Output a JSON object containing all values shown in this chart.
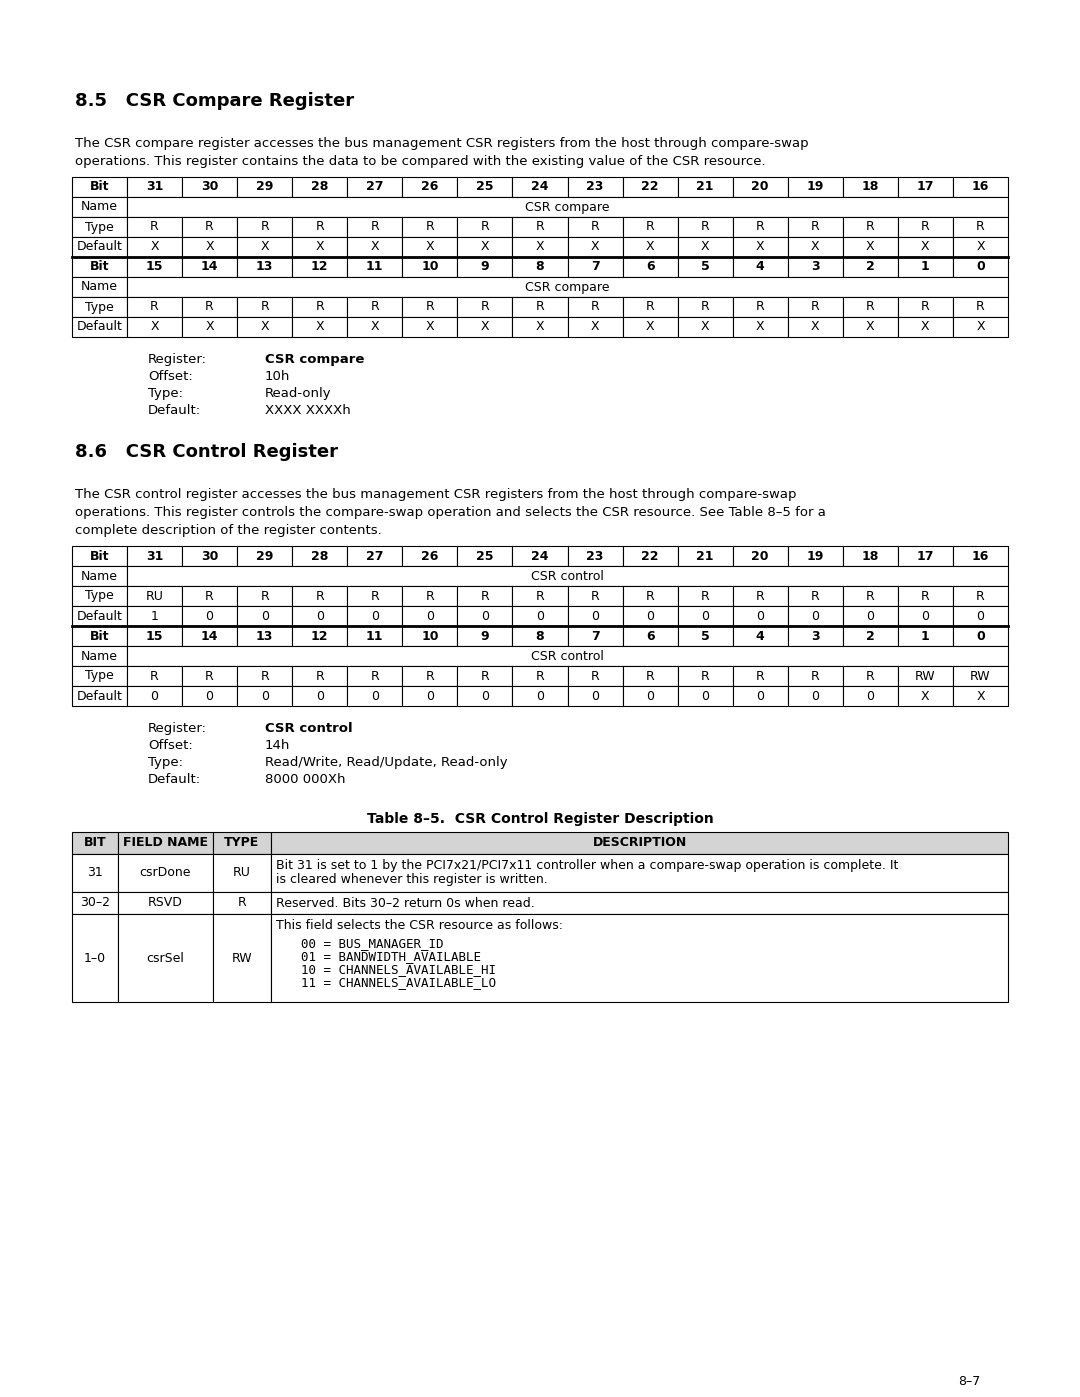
{
  "page_bg": "#ffffff",
  "section85_title": "8.5   CSR Compare Register",
  "section85_body1": "The CSR compare register accesses the bus management CSR registers from the host through compare-swap",
  "section85_body2": "operations. This register contains the data to be compared with the existing value of the CSR resource.",
  "section86_title": "8.6   CSR Control Register",
  "section86_body1": "The CSR control register accesses the bus management CSR registers from the host through compare-swap",
  "section86_body2": "operations. This register controls the compare-swap operation and selects the CSR resource. See Table 8–5 for a",
  "section86_body3": "complete description of the register contents.",
  "compare_reg_info": [
    [
      "Register:",
      "CSR compare"
    ],
    [
      "Offset:",
      "10h"
    ],
    [
      "Type:",
      "Read-only"
    ],
    [
      "Default:",
      "XXXX XXXXh"
    ]
  ],
  "control_reg_info": [
    [
      "Register:",
      "CSR control"
    ],
    [
      "Offset:",
      "14h"
    ],
    [
      "Type:",
      "Read/Write, Read/Update, Read-only"
    ],
    [
      "Default:",
      "8000 000Xh"
    ]
  ],
  "table_caption": "Table 8–5.  CSR Control Register Description",
  "table_header": [
    "BIT",
    "FIELD NAME",
    "TYPE",
    "DESCRIPTION"
  ],
  "table_rows": [
    {
      "bit": "31",
      "field": "csrDone",
      "type": "RU",
      "desc_lines": [
        "Bit 31 is set to 1 by the PCI7x21/PCI7x11 controller when a compare-swap operation is complete. It",
        "is cleared whenever this register is written."
      ],
      "code_lines": []
    },
    {
      "bit": "30–2",
      "field": "RSVD",
      "type": "R",
      "desc_lines": [
        "Reserved. Bits 30–2 return 0s when read."
      ],
      "code_lines": []
    },
    {
      "bit": "1–0",
      "field": "csrSel",
      "type": "RW",
      "desc_lines": [
        "This field selects the CSR resource as follows:"
      ],
      "code_lines": [
        "00 = BUS_MANAGER_ID",
        "01 = BANDWIDTH_AVAILABLE",
        "10 = CHANNELS_AVAILABLE_HI",
        "11 = CHANNELS_AVAILABLE_LO"
      ]
    }
  ],
  "compare_table1_bits": [
    "31",
    "30",
    "29",
    "28",
    "27",
    "26",
    "25",
    "24",
    "23",
    "22",
    "21",
    "20",
    "19",
    "18",
    "17",
    "16"
  ],
  "compare_table1_name": "CSR compare",
  "compare_table1_types": [
    "R",
    "R",
    "R",
    "R",
    "R",
    "R",
    "R",
    "R",
    "R",
    "R",
    "R",
    "R",
    "R",
    "R",
    "R",
    "R"
  ],
  "compare_table1_defaults": [
    "X",
    "X",
    "X",
    "X",
    "X",
    "X",
    "X",
    "X",
    "X",
    "X",
    "X",
    "X",
    "X",
    "X",
    "X",
    "X"
  ],
  "compare_table2_bits": [
    "15",
    "14",
    "13",
    "12",
    "11",
    "10",
    "9",
    "8",
    "7",
    "6",
    "5",
    "4",
    "3",
    "2",
    "1",
    "0"
  ],
  "compare_table2_name": "CSR compare",
  "compare_table2_types": [
    "R",
    "R",
    "R",
    "R",
    "R",
    "R",
    "R",
    "R",
    "R",
    "R",
    "R",
    "R",
    "R",
    "R",
    "R",
    "R"
  ],
  "compare_table2_defaults": [
    "X",
    "X",
    "X",
    "X",
    "X",
    "X",
    "X",
    "X",
    "X",
    "X",
    "X",
    "X",
    "X",
    "X",
    "X",
    "X"
  ],
  "control_table1_bits": [
    "31",
    "30",
    "29",
    "28",
    "27",
    "26",
    "25",
    "24",
    "23",
    "22",
    "21",
    "20",
    "19",
    "18",
    "17",
    "16"
  ],
  "control_table1_name": "CSR control",
  "control_table1_types": [
    "RU",
    "R",
    "R",
    "R",
    "R",
    "R",
    "R",
    "R",
    "R",
    "R",
    "R",
    "R",
    "R",
    "R",
    "R",
    "R"
  ],
  "control_table1_defaults": [
    "1",
    "0",
    "0",
    "0",
    "0",
    "0",
    "0",
    "0",
    "0",
    "0",
    "0",
    "0",
    "0",
    "0",
    "0",
    "0"
  ],
  "control_table2_bits": [
    "15",
    "14",
    "13",
    "12",
    "11",
    "10",
    "9",
    "8",
    "7",
    "6",
    "5",
    "4",
    "3",
    "2",
    "1",
    "0"
  ],
  "control_table2_name": "CSR control",
  "control_table2_types": [
    "R",
    "R",
    "R",
    "R",
    "R",
    "R",
    "R",
    "R",
    "R",
    "R",
    "R",
    "R",
    "R",
    "R",
    "RW",
    "RW"
  ],
  "control_table2_defaults": [
    "0",
    "0",
    "0",
    "0",
    "0",
    "0",
    "0",
    "0",
    "0",
    "0",
    "0",
    "0",
    "0",
    "0",
    "X",
    "X"
  ],
  "page_number": "8–7"
}
